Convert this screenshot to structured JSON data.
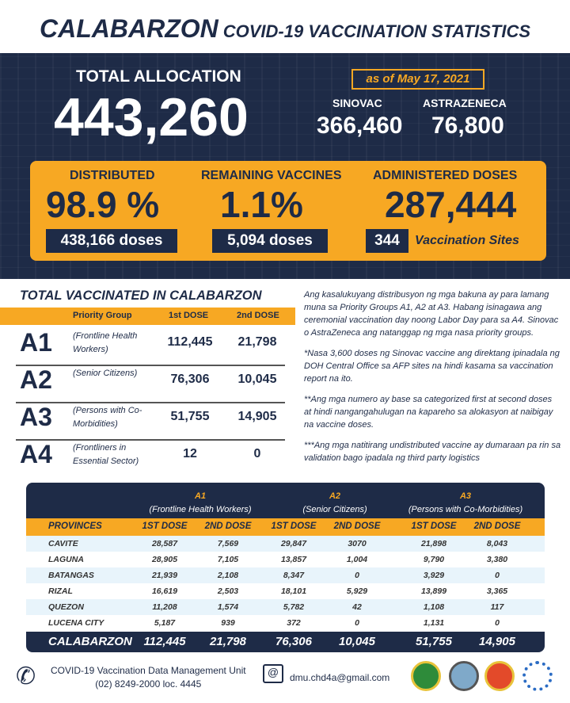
{
  "header": {
    "title_main": "CALABARZON",
    "title_sub": "COVID-19 VACCINATION STATISTICS"
  },
  "allocation": {
    "label": "TOTAL ALLOCATION",
    "value": "443,260",
    "as_of": "as of May 17, 2021",
    "sinovac_label": "SINOVAC",
    "sinovac_value": "366,460",
    "astrazeneca_label": "ASTRAZENECA",
    "astrazeneca_value": "76,800"
  },
  "summary": {
    "distributed_label": "DISTRIBUTED",
    "distributed_pct": "98.9 %",
    "distributed_doses": "438,166 doses",
    "remaining_label": "REMAINING VACCINES",
    "remaining_pct": "1.1%",
    "remaining_doses": "5,094 doses",
    "administered_label": "ADMINISTERED DOSES",
    "administered_value": "287,444",
    "sites_count": "344",
    "sites_label": "Vaccination Sites"
  },
  "total_vaccinated": {
    "title": "TOTAL VACCINATED IN CALABARZON",
    "headers": [
      "Priority Group",
      "1st DOSE",
      "2nd DOSE"
    ],
    "groups": [
      {
        "code": "A1",
        "desc": "(Frontline Health Workers)",
        "dose1": "112,445",
        "dose2": "21,798"
      },
      {
        "code": "A2",
        "desc": "(Senior Citizens)",
        "dose1": "76,306",
        "dose2": "10,045"
      },
      {
        "code": "A3",
        "desc": "(Persons with Co-Morbidities)",
        "dose1": "51,755",
        "dose2": "14,905"
      },
      {
        "code": "A4",
        "desc": "(Frontliners in Essential Sector)",
        "dose1": "12",
        "dose2": "0"
      }
    ]
  },
  "notes": [
    "Ang kasalukuyang distribusyon ng mga bakuna ay para lamang muna sa Priority Groups A1, A2 at A3. Habang isinagawa ang ceremonial vaccination day noong Labor Day para sa A4. Sinovac o AstraZeneca ang natanggap ng mga nasa priority groups.",
    "*Nasa 3,600 doses ng Sinovac vaccine ang direktang ipinadala ng DOH Central Office sa AFP sites na hindi kasama sa vaccination report na ito.",
    "**Ang mga numero ay base sa categorized first at second doses at hindi nangangahulugan na kapareho sa alokasyon at naibigay na vaccine doses.",
    "***Ang mga natitirang undistributed vaccine ay dumaraan pa rin sa validation bago ipadala ng third party logistics"
  ],
  "province_table": {
    "groups": [
      {
        "code": "A1",
        "desc": "(Frontline Health Workers)"
      },
      {
        "code": "A2",
        "desc": "(Senior Citizens)"
      },
      {
        "code": "A3",
        "desc": "(Persons with Co-Morbidities)"
      }
    ],
    "columns": [
      "PROVINCES",
      "1ST DOSE",
      "2ND DOSE",
      "1ST DOSE",
      "2ND DOSE",
      "1ST DOSE",
      "2ND DOSE"
    ],
    "rows": [
      [
        "CAVITE",
        "28,587",
        "7,569",
        "29,847",
        "3070",
        "21,898",
        "8,043"
      ],
      [
        "LAGUNA",
        "28,905",
        "7,105",
        "13,857",
        "1,004",
        "9,790",
        "3,380"
      ],
      [
        "BATANGAS",
        "21,939",
        "2,108",
        "8,347",
        "0",
        "3,929",
        "0"
      ],
      [
        "RIZAL",
        "16,619",
        "2,503",
        "18,101",
        "5,929",
        "13,899",
        "3,365"
      ],
      [
        "QUEZON",
        "11,208",
        "1,574",
        "5,782",
        "42",
        "1,108",
        "117"
      ],
      [
        "LUCENA CITY",
        "5,187",
        "939",
        "372",
        "0",
        "1,131",
        "0"
      ]
    ],
    "total": [
      "CALABARZON",
      "112,445",
      "21,798",
      "76,306",
      "10,045",
      "51,755",
      "14,905"
    ]
  },
  "footer": {
    "unit": "COVID-19 Vaccination Data Management Unit",
    "phone": "(02) 8249-2000 loc. 4445",
    "email": "dmu.chd4a@gmail.com"
  },
  "colors": {
    "navy": "#1e2b47",
    "orange": "#f7a823"
  }
}
